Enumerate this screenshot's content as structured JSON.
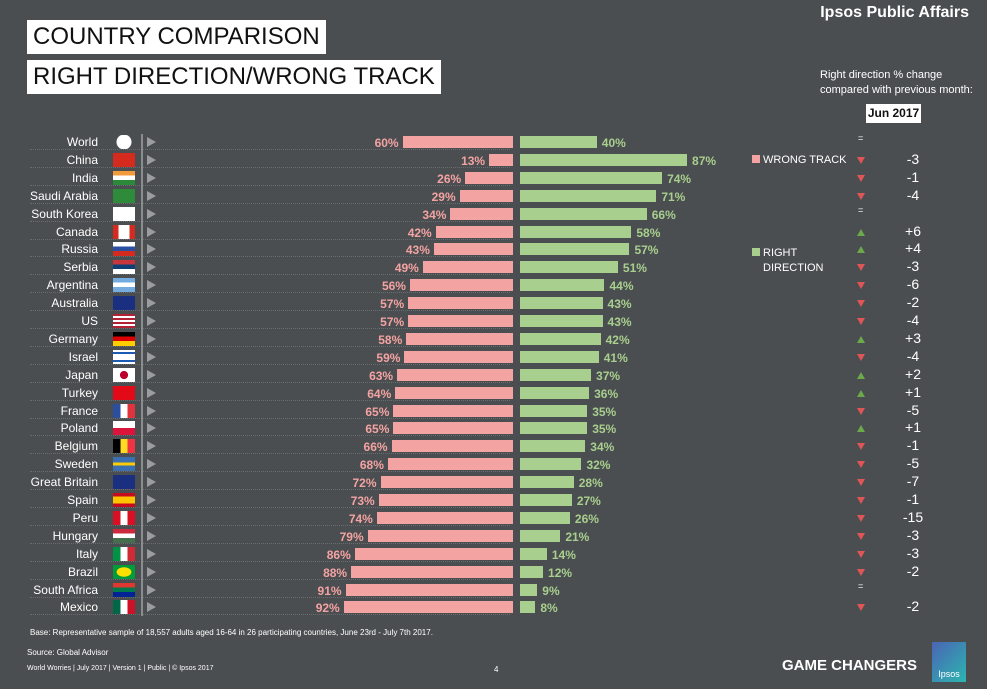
{
  "header": {
    "brand": "Ipsos Public Affairs",
    "title1": "COUNTRY COMPARISON",
    "title2": "RIGHT DIRECTION/WRONG TRACK",
    "change_heading_line1": "Right direction % change",
    "change_heading_line2": "compared with previous month:",
    "month": "Jun 2017"
  },
  "colors": {
    "wrong_track": "#f4a3a3",
    "right_direction": "#a8cf8e",
    "background": "#4b4e50",
    "up": "#6aaa4a",
    "down": "#e05555"
  },
  "chart_data": {
    "type": "bar",
    "orientation": "diverging-horizontal",
    "categories": [
      "World",
      "China",
      "India",
      "Saudi Arabia",
      "South Korea",
      "Canada",
      "Russia",
      "Serbia",
      "Argentina",
      "Australia",
      "US",
      "Germany",
      "Israel",
      "Japan",
      "Turkey",
      "France",
      "Poland",
      "Belgium",
      "Sweden",
      "Great Britain",
      "Spain",
      "Peru",
      "Hungary",
      "Italy",
      "Brazil",
      "South Africa",
      "Mexico"
    ],
    "series": [
      {
        "name": "WRONG TRACK",
        "values": [
          60,
          13,
          26,
          29,
          34,
          42,
          43,
          49,
          56,
          57,
          57,
          58,
          59,
          63,
          64,
          65,
          65,
          66,
          68,
          72,
          73,
          74,
          79,
          86,
          88,
          91,
          92
        ]
      },
      {
        "name": "RIGHT DIRECTION",
        "values": [
          40,
          87,
          74,
          71,
          66,
          58,
          57,
          51,
          44,
          43,
          43,
          42,
          41,
          37,
          36,
          35,
          35,
          34,
          32,
          28,
          27,
          26,
          21,
          14,
          12,
          9,
          8
        ]
      }
    ],
    "change": [
      "=",
      "-3",
      "-1",
      "-4",
      "=",
      "+6",
      "+4",
      "-3",
      "-6",
      "-2",
      "-4",
      "+3",
      "-4",
      "+2",
      "+1",
      "-5",
      "+1",
      "-1",
      "-5",
      "-7",
      "-1",
      "-15",
      "-3",
      "-3",
      "-2",
      "=",
      "-2"
    ],
    "legend": {
      "wrong": "WRONG TRACK",
      "right_line1": "RIGHT",
      "right_line2": "DIRECTION"
    },
    "unit": "%"
  },
  "flags": [
    "globe",
    "china",
    "india",
    "saudi-arabia",
    "south-korea",
    "canada",
    "russia",
    "serbia",
    "argentina",
    "australia",
    "us",
    "germany",
    "israel",
    "japan",
    "turkey",
    "france",
    "poland",
    "belgium",
    "sweden",
    "great-britain",
    "spain",
    "peru",
    "hungary",
    "italy",
    "brazil",
    "south-africa",
    "mexico"
  ],
  "footer": {
    "base": "Base: Representative sample of 18,557 adults aged 16-64 in 26 participating countries, June 23rd  - July 7th 2017.",
    "source": "Source: Global Advisor",
    "meta": "World Worries | July 2017 |  Version 1  |  Public | © Ipsos 2017",
    "page": "4",
    "tagline": "GAME CHANGERS",
    "logo": "Ipsos"
  }
}
